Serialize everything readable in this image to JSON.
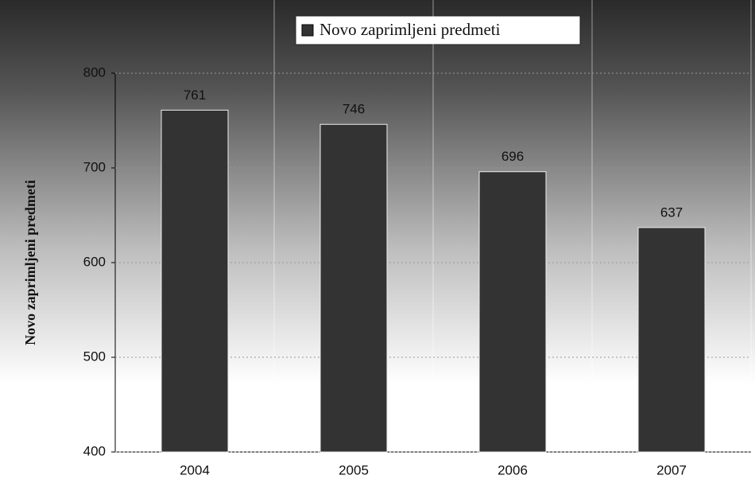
{
  "chart_data": {
    "type": "bar",
    "categories": [
      "2004",
      "2005",
      "2006",
      "2007"
    ],
    "values": [
      761,
      746,
      696,
      637
    ],
    "color": "#333333",
    "series_name": "Novo zaprimljeni predmeti",
    "y_label": "Novo zaprimljeni predmeti",
    "ylim": [
      400,
      800
    ],
    "yticks": [
      400,
      500,
      600,
      700,
      800
    ],
    "grid": true
  }
}
